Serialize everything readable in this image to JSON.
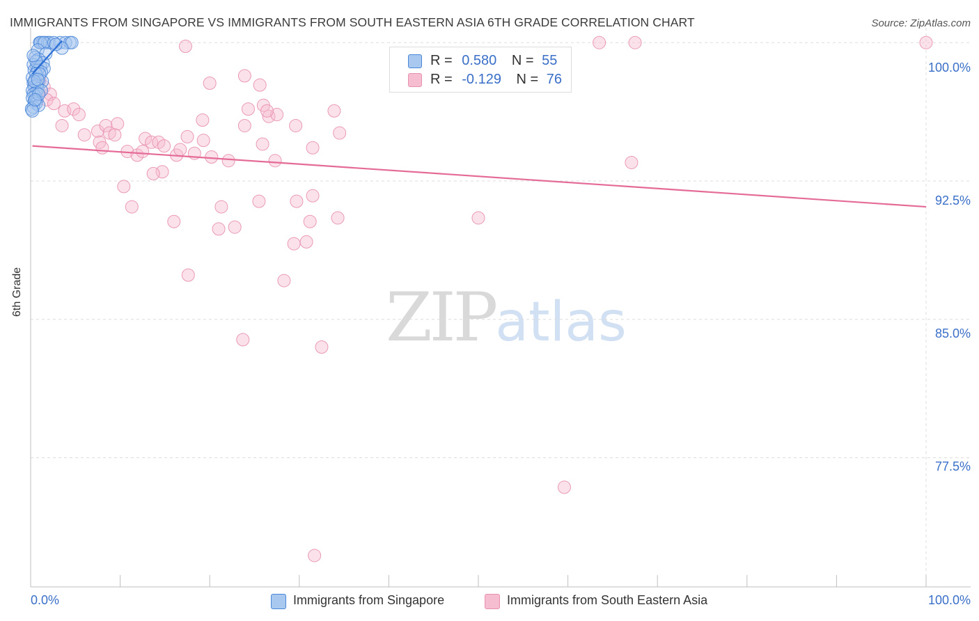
{
  "header": {
    "title": "IMMIGRANTS FROM SINGAPORE VS IMMIGRANTS FROM SOUTH EASTERN ASIA 6TH GRADE CORRELATION CHART",
    "source": "Source: ZipAtlas.com"
  },
  "watermark": {
    "zip": "ZIP",
    "atlas": "atlas"
  },
  "legend": {
    "singapore": {
      "r_label": "R =",
      "r_value": "0.580",
      "n_label": "N =",
      "n_value": "55"
    },
    "sea": {
      "r_label": "R =",
      "r_value": "-0.129",
      "n_label": "N =",
      "n_value": "76"
    }
  },
  "colors": {
    "singapore_fill": "#a8c8f0",
    "singapore_stroke": "#4a86d8",
    "singapore_line": "#2b6fd6",
    "sea_fill": "#f6bcd0",
    "sea_stroke": "#e890b0",
    "sea_line": "#e56b97",
    "tick_text": "#3a6fc8",
    "grid": "#dddddd"
  },
  "chart_data": {
    "type": "scatter",
    "title": "IMMIGRANTS FROM SINGAPORE VS IMMIGRANTS FROM SOUTH EASTERN ASIA 6TH GRADE CORRELATION CHART",
    "xlabel": "",
    "ylabel": "6th Grade",
    "xlim": [
      0,
      100
    ],
    "ylim": [
      70.5,
      100.8
    ],
    "x_tick_labels": [
      "0.0%",
      "100.0%"
    ],
    "y_ticks": [
      100.0,
      92.5,
      85.0,
      77.5
    ],
    "y_tick_labels": [
      "100.0%",
      "92.5%",
      "85.0%",
      "77.5%"
    ],
    "grid": true,
    "legend_position": "top-center",
    "series": [
      {
        "name": "Immigrants from Singapore",
        "key": "singapore",
        "R": 0.58,
        "N": 55,
        "trend": {
          "x": [
            0.2,
            3.5
          ],
          "y": [
            98.3,
            100.1
          ]
        },
        "points": [
          [
            1.0,
            100.0
          ],
          [
            1.3,
            100.0
          ],
          [
            1.6,
            100.0
          ],
          [
            1.9,
            100.0
          ],
          [
            2.1,
            100.0
          ],
          [
            1.1,
            100.0
          ],
          [
            1.5,
            100.0
          ],
          [
            3.3,
            100.0
          ],
          [
            3.9,
            100.0
          ],
          [
            4.4,
            100.0
          ],
          [
            4.6,
            100.0
          ],
          [
            3.5,
            99.7
          ],
          [
            0.8,
            99.6
          ],
          [
            1.7,
            99.4
          ],
          [
            0.5,
            99.2
          ],
          [
            0.9,
            99.1
          ],
          [
            1.4,
            98.9
          ],
          [
            0.3,
            98.8
          ],
          [
            0.7,
            98.7
          ],
          [
            1.1,
            98.7
          ],
          [
            1.5,
            98.6
          ],
          [
            0.4,
            98.5
          ],
          [
            0.8,
            98.5
          ],
          [
            1.2,
            98.4
          ],
          [
            0.6,
            98.3
          ],
          [
            0.2,
            98.1
          ],
          [
            0.5,
            98.0
          ],
          [
            0.9,
            97.9
          ],
          [
            1.3,
            97.9
          ],
          [
            0.3,
            97.8
          ],
          [
            0.7,
            97.7
          ],
          [
            0.4,
            97.6
          ],
          [
            0.8,
            97.5
          ],
          [
            0.2,
            97.4
          ],
          [
            0.6,
            97.3
          ],
          [
            0.3,
            97.2
          ],
          [
            0.5,
            97.1
          ],
          [
            0.2,
            97.0
          ],
          [
            0.7,
            96.9
          ],
          [
            0.4,
            96.8
          ],
          [
            0.6,
            96.7
          ],
          [
            0.3,
            96.5
          ],
          [
            0.9,
            96.6
          ],
          [
            0.1,
            96.4
          ],
          [
            0.2,
            96.3
          ],
          [
            2.6,
            100.0
          ],
          [
            2.8,
            99.9
          ],
          [
            0.6,
            99.0
          ],
          [
            1.0,
            98.3
          ],
          [
            0.4,
            97.9
          ],
          [
            1.2,
            97.4
          ],
          [
            0.9,
            97.2
          ],
          [
            0.5,
            96.9
          ],
          [
            0.8,
            98.0
          ],
          [
            0.3,
            99.3
          ]
        ]
      },
      {
        "name": "Immigrants from South Eastern Asia",
        "key": "sea",
        "R": -0.129,
        "N": 76,
        "trend": {
          "x": [
            0.2,
            100.0
          ],
          "y": [
            94.4,
            91.1
          ]
        },
        "points": [
          [
            100.0,
            100.0
          ],
          [
            63.5,
            100.0
          ],
          [
            67.5,
            100.0
          ],
          [
            1.0,
            98.0
          ],
          [
            0.4,
            97.9
          ],
          [
            1.5,
            97.6
          ],
          [
            2.2,
            97.2
          ],
          [
            0.8,
            97.3
          ],
          [
            1.8,
            96.9
          ],
          [
            2.6,
            96.7
          ],
          [
            3.8,
            96.3
          ],
          [
            4.8,
            96.4
          ],
          [
            5.4,
            96.1
          ],
          [
            3.5,
            95.5
          ],
          [
            7.5,
            95.2
          ],
          [
            8.4,
            95.5
          ],
          [
            9.7,
            95.6
          ],
          [
            6.0,
            95.0
          ],
          [
            8.8,
            95.1
          ],
          [
            9.4,
            95.0
          ],
          [
            7.7,
            94.6
          ],
          [
            8.0,
            94.3
          ],
          [
            10.8,
            94.1
          ],
          [
            11.9,
            93.9
          ],
          [
            12.5,
            94.1
          ],
          [
            12.8,
            94.8
          ],
          [
            13.5,
            94.6
          ],
          [
            14.3,
            94.6
          ],
          [
            14.9,
            94.4
          ],
          [
            16.3,
            93.9
          ],
          [
            16.7,
            94.2
          ],
          [
            17.5,
            94.9
          ],
          [
            18.3,
            94.0
          ],
          [
            19.3,
            94.7
          ],
          [
            20.2,
            93.8
          ],
          [
            22.1,
            93.6
          ],
          [
            23.9,
            98.2
          ],
          [
            25.6,
            97.7
          ],
          [
            26.0,
            96.6
          ],
          [
            26.6,
            96.0
          ],
          [
            27.5,
            96.1
          ],
          [
            24.3,
            96.4
          ],
          [
            23.9,
            95.5
          ],
          [
            25.9,
            94.5
          ],
          [
            27.3,
            93.6
          ],
          [
            29.6,
            95.5
          ],
          [
            17.3,
            99.8
          ],
          [
            20.0,
            97.8
          ],
          [
            19.2,
            95.8
          ],
          [
            33.9,
            96.3
          ],
          [
            31.5,
            94.3
          ],
          [
            34.5,
            95.1
          ],
          [
            14.7,
            93.0
          ],
          [
            13.7,
            92.9
          ],
          [
            10.4,
            92.2
          ],
          [
            11.3,
            91.1
          ],
          [
            16.0,
            90.3
          ],
          [
            21.3,
            91.1
          ],
          [
            21.0,
            89.9
          ],
          [
            22.8,
            90.0
          ],
          [
            25.5,
            91.4
          ],
          [
            29.7,
            91.4
          ],
          [
            31.5,
            91.7
          ],
          [
            31.2,
            90.3
          ],
          [
            34.3,
            90.5
          ],
          [
            30.8,
            89.2
          ],
          [
            29.4,
            89.1
          ],
          [
            50.0,
            90.5
          ],
          [
            67.1,
            93.5
          ],
          [
            17.6,
            87.4
          ],
          [
            28.3,
            87.1
          ],
          [
            23.7,
            83.9
          ],
          [
            32.5,
            83.5
          ],
          [
            59.6,
            75.9
          ],
          [
            31.7,
            72.2
          ],
          [
            26.4,
            96.3
          ]
        ]
      }
    ]
  },
  "bottom_legend": {
    "singapore_label": "Immigrants from Singapore",
    "sea_label": "Immigrants from South Eastern Asia"
  }
}
